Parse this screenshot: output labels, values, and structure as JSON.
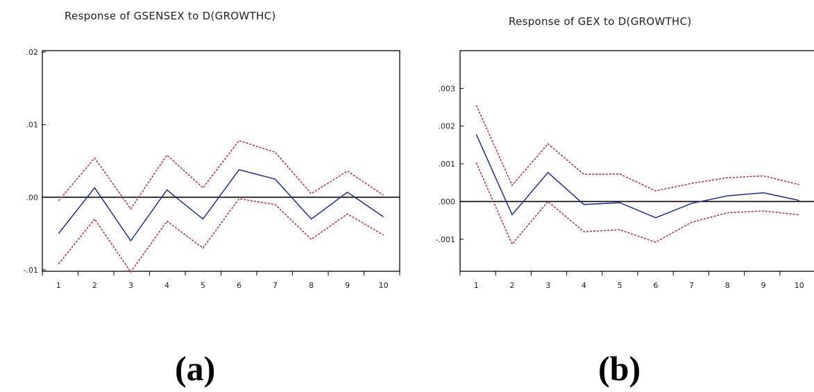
{
  "chart_data": [
    {
      "type": "line",
      "title": "Response of GSENSEX to D(GROWTHC)",
      "panel_label": "(a)",
      "x": [
        1,
        2,
        3,
        4,
        5,
        6,
        7,
        8,
        9,
        10
      ],
      "xlim": [
        0.55,
        10.45
      ],
      "ylim": [
        -0.0102,
        0.0202
      ],
      "y_ticks": [
        0.02,
        0.01,
        0.0,
        -0.01
      ],
      "y_tick_labels": [
        ".02",
        ".01",
        ".00",
        "-.01"
      ],
      "zero_line": true,
      "series": [
        {
          "role": "response",
          "color": "#1f2a9c",
          "style": "solid",
          "values": [
            -0.005,
            0.0013,
            -0.006,
            0.001,
            -0.003,
            0.0038,
            0.0025,
            -0.003,
            0.0007,
            -0.0027
          ]
        },
        {
          "role": "upper-band",
          "color": "#c0303a",
          "style": "dotted",
          "values": [
            -0.0005,
            0.0054,
            -0.0016,
            0.0058,
            0.0013,
            0.0078,
            0.0062,
            0.0005,
            0.0036,
            0.0003
          ]
        },
        {
          "role": "lower-band",
          "color": "#c0303a",
          "style": "dotted",
          "values": [
            -0.0092,
            -0.003,
            -0.0103,
            -0.0033,
            -0.007,
            -0.0002,
            -0.001,
            -0.0058,
            -0.0023,
            -0.0052
          ]
        }
      ]
    },
    {
      "type": "line",
      "title": "Response of GEX to D(GROWTHC)",
      "panel_label": "(b)",
      "x": [
        1,
        2,
        3,
        4,
        5,
        6,
        7,
        8,
        9,
        10
      ],
      "xlim": [
        0.55,
        10.45
      ],
      "ylim": [
        -0.00185,
        0.004
      ],
      "y_ticks": [
        0.003,
        0.002,
        0.001,
        0.0,
        -0.001
      ],
      "y_tick_labels": [
        ".003",
        ".002",
        ".001",
        ".000",
        "-.001"
      ],
      "zero_line": true,
      "series": [
        {
          "role": "response",
          "color": "#1f2a9c",
          "style": "solid",
          "values": [
            0.00178,
            -0.00035,
            0.00077,
            -8e-05,
            -3e-05,
            -0.00043,
            -5e-05,
            0.00015,
            0.00023,
            3e-05
          ]
        },
        {
          "role": "upper-band",
          "color": "#c0303a",
          "style": "dotted",
          "values": [
            0.00255,
            0.00043,
            0.00153,
            0.00072,
            0.00073,
            0.00028,
            0.00048,
            0.00063,
            0.00068,
            0.00045
          ]
        },
        {
          "role": "lower-band",
          "color": "#c0303a",
          "style": "dotted",
          "values": [
            0.00103,
            -0.00113,
            0.0,
            -0.0008,
            -0.00075,
            -0.00108,
            -0.00055,
            -0.0003,
            -0.00025,
            -0.00035
          ]
        }
      ]
    }
  ]
}
